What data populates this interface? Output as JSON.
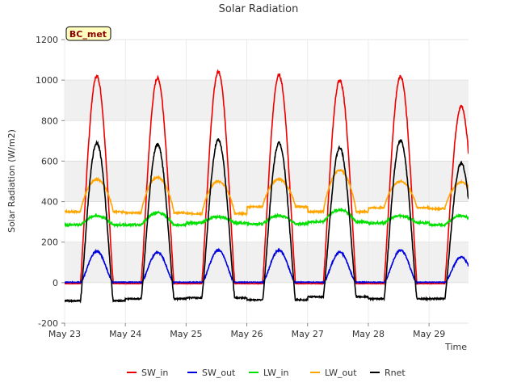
{
  "chart_data": {
    "type": "line",
    "title": "Solar Radiation",
    "xlabel": "Time",
    "ylabel": "Solar Radiation (W/m2)",
    "badge": "BC_met",
    "ylim": [
      -200,
      1200
    ],
    "yticks": [
      -200,
      0,
      200,
      400,
      600,
      800,
      1000,
      1200
    ],
    "xlim": [
      0,
      6.65
    ],
    "xticks": [
      {
        "value": 0,
        "label": "May 23"
      },
      {
        "value": 1,
        "label": "May 24"
      },
      {
        "value": 2,
        "label": "May 25"
      },
      {
        "value": 3,
        "label": "May 26"
      },
      {
        "value": 4,
        "label": "May 27"
      },
      {
        "value": 5,
        "label": "May 28"
      },
      {
        "value": 6,
        "label": "May 29"
      }
    ],
    "x_unit": "days since May 23 00:00",
    "grid": true,
    "legend_position": "bottom",
    "series": [
      {
        "name": "SW_in",
        "color": "#ee0000",
        "peaks": [
          1020,
          1010,
          1040,
          1025,
          1000,
          1020,
          870
        ]
      },
      {
        "name": "SW_out",
        "color": "#0000dd",
        "peaks": [
          155,
          150,
          160,
          160,
          150,
          160,
          125
        ]
      },
      {
        "name": "LW_in",
        "color": "#00e000",
        "night": [
          285,
          285,
          295,
          290,
          300,
          295,
          285
        ],
        "peaks": [
          330,
          345,
          325,
          330,
          360,
          330,
          330
        ]
      },
      {
        "name": "LW_out",
        "color": "#ffa500",
        "night": [
          350,
          345,
          340,
          375,
          350,
          370,
          365
        ],
        "peaks": [
          510,
          520,
          500,
          510,
          555,
          500,
          495
        ]
      },
      {
        "name": "Rnet",
        "color": "#000000",
        "night": [
          -90,
          -80,
          -75,
          -85,
          -70,
          -80,
          -80
        ],
        "peaks": [
          690,
          685,
          705,
          690,
          665,
          700,
          590
        ]
      }
    ]
  }
}
